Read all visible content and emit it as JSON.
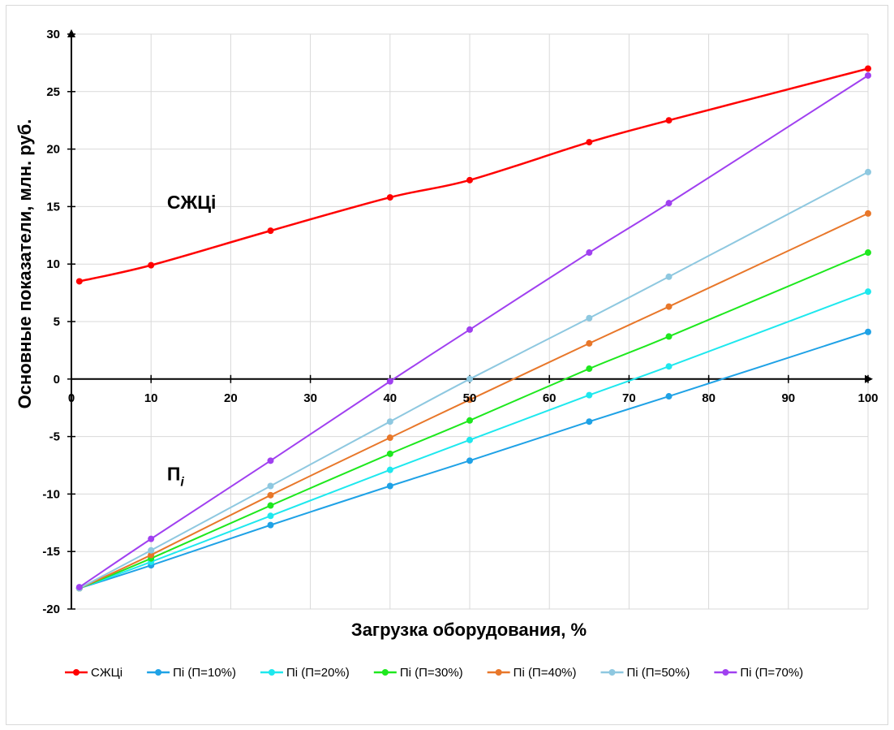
{
  "chart_data": {
    "type": "line",
    "title": "",
    "xlabel": "Загрузка  оборудования, %",
    "ylabel": "Основные показатели, млн. руб.",
    "xlim": [
      0,
      100
    ],
    "ylim": [
      -20,
      30
    ],
    "x_ticks": [
      "0",
      "10",
      "20",
      "30",
      "40",
      "50",
      "60",
      "70",
      "80",
      "90",
      "100"
    ],
    "y_ticks": [
      "30",
      "25",
      "20",
      "15",
      "10",
      "5",
      "0",
      "-5",
      "-10",
      "-15",
      "-20"
    ],
    "grid": true,
    "legend_position": "bottom",
    "annotations": [
      {
        "text": "СЖЦі",
        "x": 12,
        "y": 14.8
      },
      {
        "text": "П",
        "subscript": "i",
        "x": 12,
        "y": -8.8
      }
    ],
    "series": [
      {
        "name": "СЖЦі",
        "color": "#ff0000",
        "x": [
          1,
          10,
          25,
          40,
          50,
          65,
          75,
          100
        ],
        "y": [
          8.5,
          9.9,
          12.9,
          15.8,
          17.3,
          20.6,
          22.5,
          27.0
        ]
      },
      {
        "name": "Пі (П=10%)",
        "color": "#1fa2e6",
        "x": [
          1,
          10,
          25,
          40,
          50,
          65,
          75,
          100
        ],
        "y": [
          -18.2,
          -16.2,
          -12.7,
          -9.3,
          -7.1,
          -3.7,
          -1.5,
          4.1
        ]
      },
      {
        "name": "Пі (П=20%)",
        "color": "#1ee8ee",
        "x": [
          1,
          10,
          25,
          40,
          50,
          65,
          75,
          100
        ],
        "y": [
          -18.2,
          -15.9,
          -11.9,
          -7.9,
          -5.3,
          -1.4,
          1.1,
          7.6
        ]
      },
      {
        "name": "Пі (П=30%)",
        "color": "#1ee81e",
        "x": [
          1,
          10,
          25,
          40,
          50,
          65,
          75,
          100
        ],
        "y": [
          -18.2,
          -15.6,
          -11.0,
          -6.5,
          -3.6,
          0.9,
          3.7,
          11.0
        ]
      },
      {
        "name": "Пі (П=40%)",
        "color": "#e8772a",
        "x": [
          1,
          10,
          25,
          40,
          50,
          65,
          75,
          100
        ],
        "y": [
          -18.2,
          -15.3,
          -10.1,
          -5.1,
          -1.8,
          3.1,
          6.3,
          14.4
        ]
      },
      {
        "name": "Пі (П=50%)",
        "color": "#8ec8e0",
        "x": [
          1,
          10,
          25,
          40,
          50,
          65,
          75,
          100
        ],
        "y": [
          -18.2,
          -14.9,
          -9.3,
          -3.7,
          0.0,
          5.3,
          8.9,
          18.0
        ]
      },
      {
        "name": "Пі (П=70%)",
        "color": "#a040f0",
        "x": [
          1,
          10,
          25,
          40,
          50,
          65,
          75,
          100
        ],
        "y": [
          -18.1,
          -13.9,
          -7.1,
          -0.2,
          4.3,
          11.0,
          15.3,
          26.4
        ]
      }
    ]
  }
}
